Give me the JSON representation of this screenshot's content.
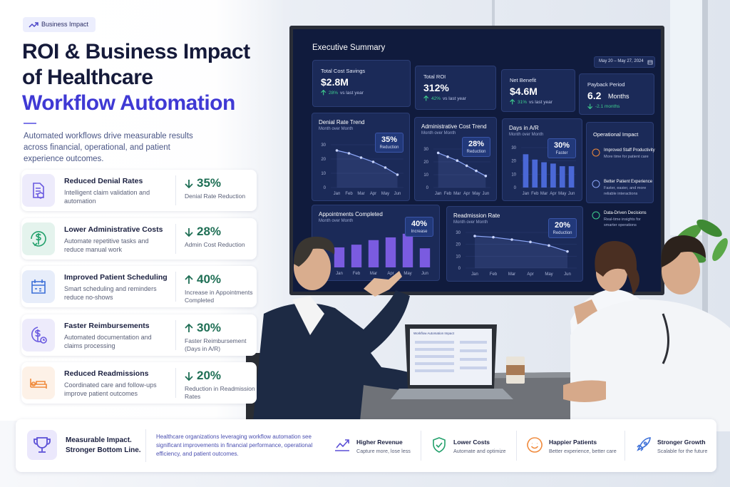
{
  "badge": "Business Impact",
  "title": {
    "line1": "ROI & Business Impact",
    "line2": "of Healthcare",
    "line3": "Workflow Automation"
  },
  "subtitle": "Automated workflows drive measurable results across financial, operational, and patient experience outcomes.",
  "cards": [
    {
      "title": "Reduced Denial Rates",
      "description": "Intelligent claim validation and automation",
      "value": "35%",
      "direction": "down",
      "label": "Denial Rate Reduction",
      "color": "#6a5ae0"
    },
    {
      "title": "Lower Administrative Costs",
      "description": "Automate repetitive tasks and reduce manual work",
      "value": "28%",
      "direction": "down",
      "label": "Admin Cost Reduction",
      "color": "#22a06b"
    },
    {
      "title": "Improved Patient Scheduling",
      "description": "Smart scheduling and reminders reduce no-shows",
      "value": "40%",
      "direction": "up",
      "label": "Increase in Appointments Completed",
      "color": "#3b6fd8"
    },
    {
      "title": "Faster Reimbursements",
      "description": "Automated documentation and claims processing",
      "value": "30%",
      "direction": "up",
      "label": "Faster Reimbursement (Days in A/R)",
      "color": "#6a5ae0"
    },
    {
      "title": "Reduced Readmissions",
      "description": "Coordinated care and follow-ups improve patient outcomes",
      "value": "20%",
      "direction": "down",
      "label": "Reduction in Readmission Rates",
      "color": "#f08a3c"
    }
  ],
  "dashboard": {
    "title": "Executive Summary",
    "date_range": "May 20 – May 27, 2024",
    "kpis": [
      {
        "label": "Total Cost Savings",
        "value": "$2.8M",
        "change": "28%",
        "note": "vs last year",
        "direction": "up"
      },
      {
        "label": "Total ROI",
        "value": "312%",
        "change": "42%",
        "note": "vs last year",
        "direction": "up"
      },
      {
        "label": "Net Benefit",
        "value": "$4.6M",
        "change": "31%",
        "note": "vs last year",
        "direction": "up"
      },
      {
        "label": "Payback Period",
        "value": "6.2",
        "unit": "Months",
        "change": "-2.1 months",
        "direction": "down"
      }
    ],
    "charts": [
      {
        "type": "line",
        "title": "Denial Rate Trend",
        "subtitle": "Month over Month",
        "badge_value": "35%",
        "badge_label": "Reduction",
        "categories": [
          "Jan",
          "Feb",
          "Mar",
          "Apr",
          "May",
          "Jun"
        ],
        "values": [
          26,
          24,
          21,
          18,
          14,
          9
        ],
        "ylim": [
          0,
          30
        ],
        "yticks": [
          0,
          10,
          20,
          30
        ],
        "color": "#8aa4f5"
      },
      {
        "type": "line",
        "title": "Administrative Cost Trend",
        "subtitle": "Month over Month",
        "badge_value": "28%",
        "badge_label": "Reduction",
        "categories": [
          "Jan",
          "Feb",
          "Mar",
          "Apr",
          "May",
          "Jun"
        ],
        "values": [
          27,
          24,
          21,
          17,
          13,
          9
        ],
        "ylim": [
          0,
          30
        ],
        "yticks": [
          0,
          10,
          20,
          30
        ],
        "color": "#8aa4f5"
      },
      {
        "type": "bar",
        "title": "Days in A/R",
        "subtitle": "Month over Month",
        "badge_value": "30%",
        "badge_label": "Faster",
        "categories": [
          "Jan",
          "Feb",
          "Mar",
          "Apr",
          "May",
          "Jun"
        ],
        "values": [
          25,
          21,
          19,
          18,
          16,
          16
        ],
        "ylim": [
          0,
          30
        ],
        "yticks": [
          0,
          10,
          20,
          30
        ],
        "color": "#4a68d6"
      },
      {
        "type": "bar",
        "title": "Appointments Completed",
        "subtitle": "Month over Month",
        "badge_value": "40%",
        "badge_label": "Increase",
        "categories": [
          "Jan",
          "Feb",
          "Mar",
          "Apr",
          "May",
          "Jun"
        ],
        "values": [
          22,
          25,
          30,
          33,
          37,
          21
        ],
        "ylim": [
          0,
          40
        ],
        "color": "#7a5be0"
      },
      {
        "type": "line",
        "title": "Readmission Rate",
        "subtitle": "Month over Month",
        "badge_value": "20%",
        "badge_label": "Reduction",
        "categories": [
          "Jan",
          "Feb",
          "Mar",
          "Apr",
          "May",
          "Jun"
        ],
        "values": [
          27,
          26,
          24,
          22,
          19,
          14
        ],
        "ylim": [
          0,
          30
        ],
        "yticks": [
          0,
          10,
          20,
          30
        ],
        "color": "#8aa4f5"
      }
    ],
    "operational_impact": {
      "title": "Operational Impact",
      "items": [
        {
          "title": "Improved Staff Productivity",
          "description": "More time for patient care"
        },
        {
          "title": "Better Patient Experience",
          "description": "Faster, easier, and more reliable interactions"
        },
        {
          "title": "Data-Driven Decisions",
          "description": "Real-time insights for smarter operations"
        }
      ]
    }
  },
  "laptop_title": "Workflow Automation Impact",
  "footer": {
    "headline_1": "Measurable Impact.",
    "headline_2": "Stronger Bottom Line.",
    "text": "Healthcare organizations leveraging workflow automation see significant improvements in financial performance, operational efficiency, and patient outcomes.",
    "items": [
      {
        "title": "Higher Revenue",
        "description": "Capture more, lose less",
        "color": "#5b4fd6"
      },
      {
        "title": "Lower Costs",
        "description": "Automate and optimize",
        "color": "#22a06b"
      },
      {
        "title": "Happier Patients",
        "description": "Better experience, better care",
        "color": "#f08a3c"
      },
      {
        "title": "Stronger Growth",
        "description": "Scalable for the future",
        "color": "#3b6fd8"
      }
    ]
  }
}
